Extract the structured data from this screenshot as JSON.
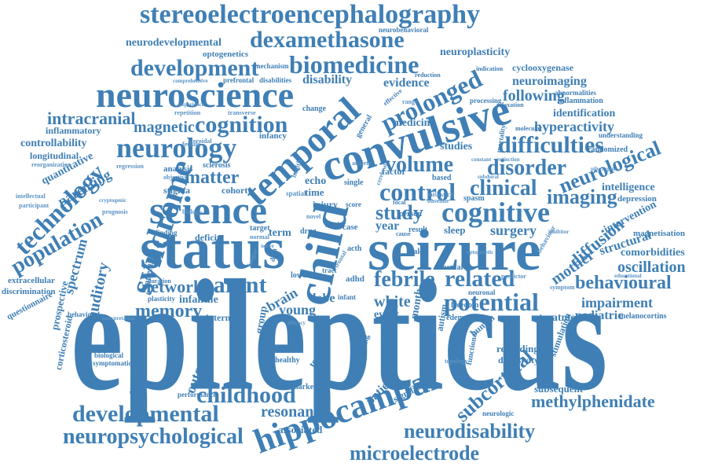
{
  "palette": {
    "primary": "#3f7fb5",
    "light": "#5b93c4",
    "background": "#ffffff"
  },
  "words": {
    "epilepticus": "epilepticus",
    "status": "status",
    "seizure": "seizure",
    "child": "child",
    "convulsive": "convulsive",
    "science": "science",
    "temporal": "temporal",
    "hippocampal": "hippocampal",
    "neuroscience": "neuroscience",
    "stereoelectroencephalography": "stereoelectroencephalography",
    "dexamethasone": "dexamethasone",
    "biomedicine": "biomedicine",
    "development": "development",
    "neurology": "neurology",
    "cognition": "cognition",
    "syndrome": "syndrome",
    "cognitive": "cognitive",
    "potential": "potential",
    "febrile": "febrile",
    "related": "related",
    "technology": "technology",
    "population": "population",
    "prolonged": "prolonged",
    "difficulties": "difficulties",
    "disorder": "disorder",
    "control": "control",
    "clinical": "clinical",
    "volume": "volume",
    "study": "study",
    "imaging": "imaging",
    "neurological": "neurological",
    "childhood": "childhood",
    "developmental": "developmental",
    "neuropsychological": "neuropsychological",
    "neurodisability": "neurodisability",
    "microelectrode": "microelectrode",
    "subcortical": "subcortical",
    "methylphenidate": "methylphenidate",
    "behavioural": "behavioural",
    "impairment": "impairment",
    "oscillation": "oscillation",
    "comorbidities": "comorbidities",
    "diffusion": "diffusion",
    "mother": "mother",
    "structural": "structural",
    "surgery": "surgery",
    "memory": "memory",
    "network": "network",
    "parent": "parent",
    "resonance": "resonance",
    "matter": "matter",
    "magnetic": "magnetic",
    "intracranial": "intracranial",
    "parenting": "parenting",
    "auditory": "auditory",
    "spectrum": "spectrum",
    "brain": "brain",
    "young": "young",
    "white": "white",
    "lobe": "lobe",
    "infantile": "infantile",
    "outcome": "outcome",
    "patient": "patient",
    "treatment": "treatment",
    "pediatric": "pediatric",
    "neuroimaging": "neuroimaging",
    "following": "following",
    "evidence": "evidence",
    "disability": "disability",
    "neurodevelopmental": "neurodevelopmental",
    "optogenetics": "optogenetics",
    "neuroplasticity": "neuroplasticity",
    "cyclooxygenase": "cyclooxygenase",
    "identification": "identification",
    "inflammation": "inflammation",
    "abnormalities": "abnormalities",
    "hyperactivity": "hyperactivity",
    "intelligence": "intelligence",
    "intervention": "intervention",
    "magnetisation": "magnetisation",
    "depression": "depression",
    "melanocortins": "melanocortins",
    "subsequent": "subsequent",
    "associated": "associated",
    "recording": "recording",
    "diffusivity": "diffusivity",
    "stimulation": "stimulation",
    "controllability": "controllability",
    "inflammatory": "inflammatory",
    "longitudinal": "longitudinal",
    "quantitative": "quantitative",
    "extracellular": "extracellular",
    "discrimination": "discrimination",
    "questionnaire": "questionnaire",
    "prospective": "prospective",
    "corticosteroid": "corticosteroid",
    "behavioral": "behavioral",
    "attention": "attention",
    "deficit": "deficit",
    "stigma": "stigma",
    "cohort": "cohort",
    "analysis": "analysis",
    "sclerosis": "sclerosis",
    "infancy": "infancy",
    "echo": "echo",
    "time": "time",
    "term": "term",
    "injury": "injury",
    "year": "year",
    "sleep": "sleep",
    "studies": "studies",
    "factor": "factor",
    "based": "based",
    "mental": "mental",
    "person": "person",
    "month": "month",
    "event": "event",
    "internal": "internal",
    "group": "group",
    "adhd": "adhd",
    "single": "single",
    "score": "score",
    "medicine": "medicine",
    "change": "change",
    "mechanism": "mechanism",
    "prefrontal": "prefrontal",
    "disabilities": "disabilities",
    "neurobehavioral": "neurobehavioral",
    "reduction": "reduction",
    "indication": "indication",
    "mortality": "mortality",
    "randomized": "randomized",
    "understanding": "understanding",
    "molecular": "molecular",
    "edema": "edema",
    "freedom": "freedom",
    "human": "human",
    "autism": "autism",
    "region": "region",
    "functional": "functional",
    "significant": "significant",
    "biomarker": "biomarker",
    "healthy": "healthy",
    "learning": "learning",
    "tensor": "tensor",
    "volumetric": "volumetric",
    "assessment": "assessment",
    "biological": "biological",
    "symptomatic": "symptomatic",
    "performance": "performance",
    "neurologic": "neurologic",
    "plasticity": "plasticity",
    "duration": "duration",
    "finding": "finding",
    "target": "target",
    "drug": "drug",
    "case": "case",
    "need": "need",
    "scale": "scale",
    "acth": "acth",
    "spasm": "spasm",
    "effective": "effective",
    "general": "general",
    "processing": "processing",
    "relaxation": "relaxation",
    "repetition": "repetition",
    "comprehensive": "comprehensive",
    "steroidal": "steroidal",
    "regression": "regression",
    "reorganization": "reorganization",
    "intellectual": "intellectual",
    "participant": "participant",
    "prognosis": "prognosis",
    "cryptogenic": "cryptogenic",
    "objective": "objective",
    "female": "female",
    "experience": "experience",
    "transverse": "transverse",
    "normal": "normal",
    "topology": "topology",
    "predictor": "predictor",
    "optogenetic": "optogenetic",
    "interpretation": "interpretation",
    "nerve": "nerve",
    "symptom": "symptom",
    "baseline": "baseline",
    "mismatch": "mismatch",
    "range": "range",
    "subdural": "subdural",
    "constant": "constant",
    "extinction": "extinction",
    "pilocarpine": "pilocarpine",
    "inhibitor": "inhibitor",
    "educational": "educational",
    "behaviour": "behaviour",
    "efficacy": "efficacy",
    "lower": "lower",
    "cause": "cause",
    "result": "result",
    "infant": "infant",
    "tract": "tract",
    "frontal": "frontal",
    "fatigue": "fatigue",
    "data": "data",
    "focal": "focal",
    "neuronal": "neuronal",
    "spatial": "spatial",
    "health": "health",
    "anxiety": "anxiety",
    "cerebral": "cerebral",
    "biology": "biology",
    "novel": "novel"
  }
}
